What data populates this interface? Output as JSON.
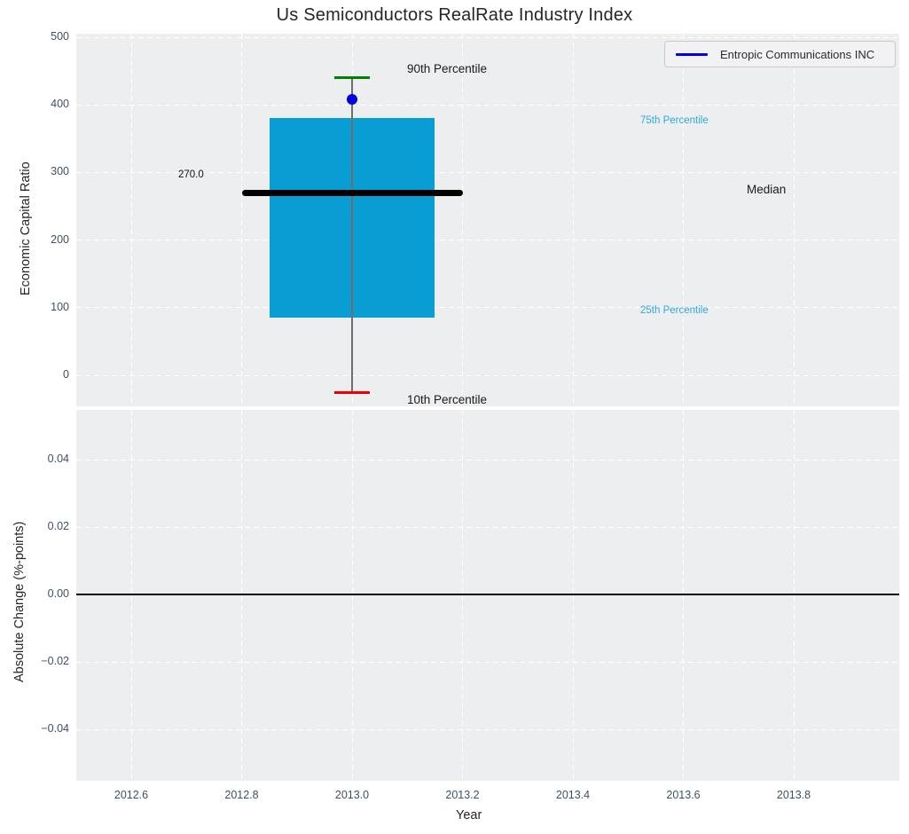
{
  "title": "Us Semiconductors RealRate Industry Index",
  "legend": {
    "label": "Entropic Communications INC",
    "line_color": "#0000e0",
    "position": "upper right"
  },
  "colors": {
    "figure_bg": "#ffffff",
    "plot_bg": "#eceef0",
    "grid": "#ffffff",
    "tick_label": "#3d5166",
    "axis_label": "#262626",
    "box_fill": "#089ed4",
    "median_line": "#000000",
    "whisker": "#6e6e6e",
    "cap_90th": "#008000",
    "cap_10th": "#ee0000",
    "company_marker": "#0000e0",
    "percentile_label_blue": "#2fa8da",
    "zero_line": "#000000"
  },
  "chart_data": [
    {
      "type": "boxplot",
      "title": "Us Semiconductors RealRate Industry Index",
      "ylabel": "Economic Capital Ratio",
      "ylim": [
        -45,
        505
      ],
      "xlim": [
        2012.5,
        2013.99
      ],
      "grid": "white dashed, on",
      "yticks": {
        "values": [
          0,
          100,
          200,
          300,
          400,
          500
        ],
        "labels": [
          "0",
          "100",
          "200",
          "300",
          "400",
          "500"
        ]
      },
      "box": {
        "x_center": 2013.0,
        "box_x_range": [
          2012.85,
          2013.15
        ],
        "median_x_range": [
          2012.8,
          2013.2
        ],
        "p10": -25,
        "p25": 85,
        "median": 270,
        "p75": 380,
        "p90": 440,
        "median_value_label": "270.0"
      },
      "company_point": {
        "name": "Entropic Communications INC",
        "x": 2013.0,
        "y": 408
      },
      "annotations": {
        "p90": "90th Percentile",
        "p75": "75th Percentile",
        "median": "Median",
        "p25": "25th Percentile",
        "p10": "10th Percentile"
      }
    },
    {
      "type": "line",
      "ylabel": "Absolute Change (%-points)",
      "xlabel": "Year",
      "ylim": [
        -0.055,
        0.055
      ],
      "xlim": [
        2012.5,
        2013.99
      ],
      "grid": "white dashed, on",
      "yticks": {
        "values": [
          -0.04,
          -0.02,
          0,
          0.02,
          0.04
        ],
        "labels": [
          "−0.04",
          "−0.02",
          "0.00",
          "0.02",
          "0.04"
        ]
      },
      "xticks": {
        "values": [
          2012.6,
          2012.8,
          2013.0,
          2013.2,
          2013.4,
          2013.6,
          2013.8
        ],
        "labels": [
          "2012.6",
          "2012.8",
          "2013.0",
          "2013.2",
          "2013.4",
          "2013.6",
          "2013.8"
        ]
      },
      "zero_line_y": 0.0
    }
  ]
}
